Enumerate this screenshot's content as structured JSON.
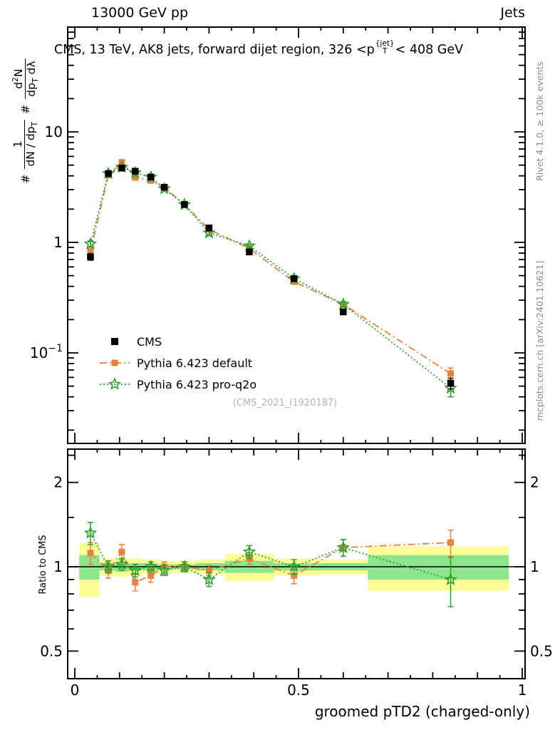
{
  "header": {
    "left": "13000 GeV pp",
    "right": "Jets"
  },
  "title": {
    "a": "CMS, 13 TeV, AK8 jets, forward dijet region, 326 <p",
    "sup": "{jet}",
    "sub": "T",
    "b": "< 408 GeV"
  },
  "ylabel": {
    "hash1": "#",
    "f1num": "1",
    "f1den": [
      "dN / dp",
      "T"
    ],
    "hash2": "#",
    "f2num": [
      "d",
      "2",
      "N"
    ],
    "f2den": [
      "dp",
      "T",
      " dλ"
    ]
  },
  "watermark": "(CMS_2021_I1920187)",
  "side_notes": {
    "rivet": "Rivet 4.1.0, ≥ 100k events",
    "mcplots": "mcplots.cern.ch [arXiv:2401.10621]"
  },
  "chart_data": {
    "type": "line",
    "title": "CMS, 13 TeV, AK8 jets, forward dijet region, 326 < pT{jet} < 408 GeV",
    "xlabel": "groomed pTD2 (charged-only)",
    "ylabel": "1/(dN/dpT) d²N/(dpT dλ)",
    "ratio_label": "Ratio to CMS",
    "yscale": "log10",
    "ratio_yscale": "log10",
    "xlim": [
      -0.016,
      1.006
    ],
    "top_ylim": [
      0.015,
      90
    ],
    "ratio_ylim": [
      0.4,
      2.63
    ],
    "x": [
      0.035,
      0.075,
      0.105,
      0.135,
      0.17,
      0.2,
      0.245,
      0.3,
      0.39,
      0.49,
      0.6,
      0.84
    ],
    "series": [
      {
        "name": "CMS",
        "kind": "data",
        "color": "#000000",
        "line": "none",
        "marker": "filled-square",
        "values": [
          0.74,
          4.2,
          4.7,
          4.4,
          3.9,
          3.15,
          2.2,
          1.35,
          0.82,
          0.47,
          0.235,
          0.053
        ],
        "errors": [
          0.05,
          0.15,
          0.16,
          0.15,
          0.13,
          0.11,
          0.08,
          0.05,
          0.03,
          0.02,
          0.013,
          0.006
        ]
      },
      {
        "name": "Pythia 6.423 default",
        "kind": "mc",
        "color": "#e8813b",
        "line": "dashdot",
        "marker": "filled-square",
        "values": [
          0.83,
          4.07,
          5.3,
          3.87,
          3.63,
          3.15,
          2.2,
          1.31,
          0.88,
          0.44,
          0.275,
          0.065
        ],
        "errors": [
          0.05,
          0.12,
          0.15,
          0.12,
          0.11,
          0.09,
          0.07,
          0.05,
          0.03,
          0.02,
          0.015,
          0.008
        ]
      },
      {
        "name": "Pythia 6.423 pro-q2o",
        "kind": "mc",
        "color": "#2ca02c",
        "line": "dotted",
        "marker": "open-star",
        "values": [
          0.97,
          4.2,
          4.8,
          4.27,
          3.9,
          3.06,
          2.2,
          1.22,
          0.93,
          0.47,
          0.275,
          0.048
        ],
        "errors": [
          0.06,
          0.12,
          0.14,
          0.12,
          0.11,
          0.09,
          0.07,
          0.05,
          0.03,
          0.02,
          0.015,
          0.008
        ]
      }
    ],
    "ratio": {
      "reference": 1,
      "series": [
        {
          "name": "Pythia 6.423 default",
          "color": "#e8813b",
          "line": "dashdot",
          "marker": "filled-square",
          "values": [
            1.12,
            0.97,
            1.13,
            0.88,
            0.93,
            1.0,
            1.0,
            0.97,
            1.07,
            0.93,
            1.17,
            1.22
          ],
          "errors": [
            0.1,
            0.06,
            0.07,
            0.06,
            0.05,
            0.04,
            0.04,
            0.04,
            0.05,
            0.06,
            0.08,
            0.13
          ]
        },
        {
          "name": "Pythia 6.423 pro-q2o",
          "color": "#2ca02c",
          "line": "dotted",
          "marker": "open-star",
          "values": [
            1.32,
            1.0,
            1.02,
            0.97,
            1.0,
            0.97,
            1.0,
            0.9,
            1.13,
            1.0,
            1.17,
            0.9
          ],
          "errors": [
            0.12,
            0.05,
            0.05,
            0.05,
            0.04,
            0.04,
            0.04,
            0.05,
            0.06,
            0.06,
            0.08,
            0.18
          ]
        }
      ],
      "bands": [
        {
          "x0": 0.01,
          "x1": 0.055,
          "yellow": [
            0.78,
            1.22
          ],
          "green": [
            0.9,
            1.1
          ]
        },
        {
          "x0": 0.055,
          "x1": 0.09,
          "yellow": [
            0.93,
            1.07
          ],
          "green": [
            0.97,
            1.03
          ]
        },
        {
          "x0": 0.09,
          "x1": 0.12,
          "yellow": [
            0.92,
            1.08
          ],
          "green": [
            0.96,
            1.04
          ]
        },
        {
          "x0": 0.12,
          "x1": 0.15,
          "yellow": [
            0.93,
            1.07
          ],
          "green": [
            0.97,
            1.03
          ]
        },
        {
          "x0": 0.15,
          "x1": 0.185,
          "yellow": [
            0.94,
            1.06
          ],
          "green": [
            0.97,
            1.03
          ]
        },
        {
          "x0": 0.185,
          "x1": 0.22,
          "yellow": [
            0.95,
            1.05
          ],
          "green": [
            0.98,
            1.02
          ]
        },
        {
          "x0": 0.22,
          "x1": 0.27,
          "yellow": [
            0.95,
            1.05
          ],
          "green": [
            0.98,
            1.02
          ]
        },
        {
          "x0": 0.27,
          "x1": 0.335,
          "yellow": [
            0.94,
            1.06
          ],
          "green": [
            0.97,
            1.03
          ]
        },
        {
          "x0": 0.335,
          "x1": 0.445,
          "yellow": [
            0.89,
            1.11
          ],
          "green": [
            0.95,
            1.05
          ]
        },
        {
          "x0": 0.445,
          "x1": 0.545,
          "yellow": [
            0.93,
            1.07
          ],
          "green": [
            0.97,
            1.03
          ]
        },
        {
          "x0": 0.545,
          "x1": 0.655,
          "yellow": [
            0.94,
            1.06
          ],
          "green": [
            0.97,
            1.03
          ]
        },
        {
          "x0": 0.655,
          "x1": 0.97,
          "yellow": [
            0.82,
            1.18
          ],
          "green": [
            0.9,
            1.1
          ]
        }
      ],
      "band_colors": {
        "yellow": "#fdfd96",
        "green": "#8de58d"
      }
    },
    "axes": {
      "xticks": [
        {
          "v": 0,
          "label": "0"
        },
        {
          "v": 0.5,
          "label": "0.5"
        },
        {
          "v": 1,
          "label": "1"
        }
      ],
      "top_yticks": [
        {
          "v": 10,
          "label": "10"
        },
        {
          "v": 1,
          "label": "1"
        },
        {
          "v": 0.1,
          "label": "10",
          "sup": "−1"
        }
      ],
      "ratio_yticks": [
        {
          "v": 2,
          "label": "2"
        },
        {
          "v": 1,
          "label": "1"
        },
        {
          "v": 0.5,
          "label": "0.5"
        }
      ]
    }
  }
}
